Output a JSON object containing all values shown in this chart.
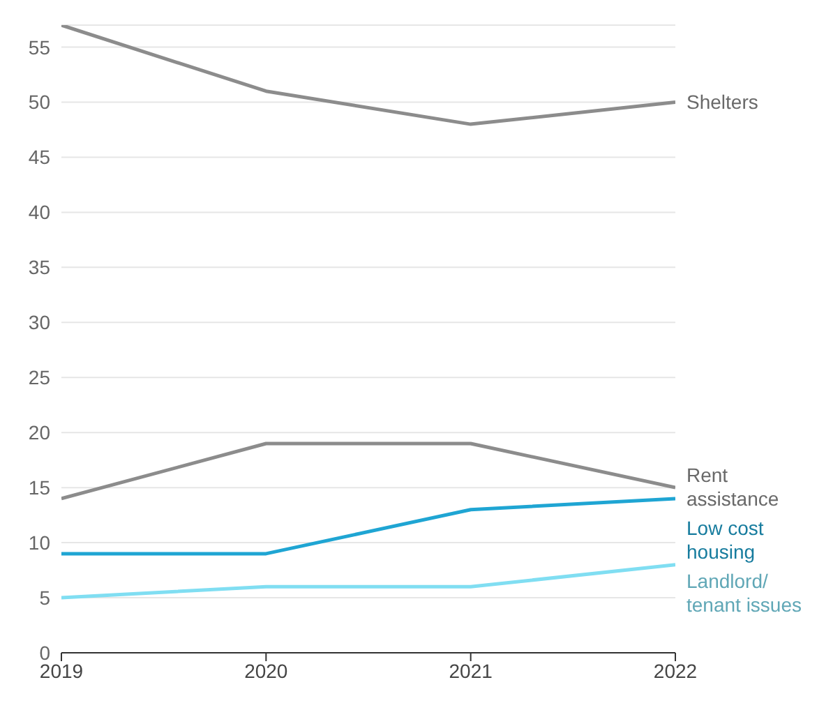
{
  "chart_data": {
    "type": "line",
    "categories": [
      "2019",
      "2020",
      "2021",
      "2022"
    ],
    "series": [
      {
        "name": "Shelters",
        "color": "#8c8c8c",
        "values": [
          57,
          51,
          48,
          50
        ]
      },
      {
        "name": "Rent assistance",
        "color": "#8c8c8c",
        "values": [
          14,
          19,
          19,
          15
        ]
      },
      {
        "name": "Low cost housing",
        "color": "#1fa5d3",
        "values": [
          9,
          9,
          13,
          14
        ]
      },
      {
        "name": "Landlord/ tenant issues",
        "color": "#80def2",
        "values": [
          5,
          6,
          6,
          8
        ]
      }
    ],
    "ylim": [
      0,
      57
    ],
    "yticks": [
      0,
      5,
      10,
      15,
      20,
      25,
      30,
      35,
      40,
      45,
      50,
      55
    ],
    "grid": "y",
    "legend": false,
    "marker": "none",
    "line_style": "solid"
  }
}
